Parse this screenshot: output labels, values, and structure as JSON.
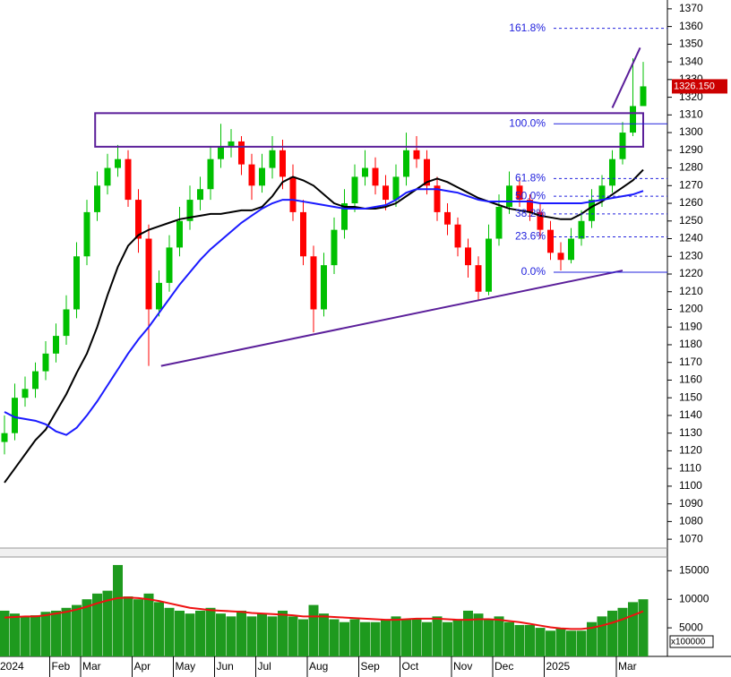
{
  "chart_data": {
    "type": "candlestick",
    "categories": [
      "2024",
      null,
      null,
      null,
      null,
      "Feb",
      null,
      null,
      "Mar",
      null,
      null,
      null,
      null,
      "Apr",
      null,
      null,
      null,
      "May",
      null,
      null,
      null,
      "Jun",
      null,
      null,
      null,
      "Jul",
      null,
      null,
      null,
      null,
      "Aug",
      null,
      null,
      null,
      null,
      "Sep",
      null,
      null,
      null,
      "Oct",
      null,
      null,
      null,
      null,
      "Nov",
      null,
      null,
      null,
      "Dec",
      null,
      null,
      null,
      null,
      "2025",
      null,
      null,
      null,
      null,
      null,
      null,
      "Mar",
      null,
      null
    ],
    "open": [
      1125,
      1130,
      1150,
      1155,
      1165,
      1175,
      1185,
      1200,
      1230,
      1255,
      1270,
      1280,
      1285,
      1262,
      1240,
      1200,
      1215,
      1235,
      1250,
      1262,
      1268,
      1285,
      1292,
      1295,
      1282,
      1270,
      1280,
      1290,
      1275,
      1255,
      1230,
      1200,
      1225,
      1245,
      1260,
      1275,
      1280,
      1270,
      1262,
      1275,
      1290,
      1285,
      1270,
      1255,
      1248,
      1235,
      1225,
      1210,
      1240,
      1258,
      1270,
      1262,
      1255,
      1245,
      1232,
      1228,
      1240,
      1250,
      1262,
      1270,
      1285,
      1300,
      1315
    ],
    "high": [
      1140,
      1158,
      1162,
      1170,
      1182,
      1192,
      1208,
      1238,
      1262,
      1278,
      1288,
      1293,
      1290,
      1268,
      1248,
      1222,
      1242,
      1258,
      1270,
      1275,
      1292,
      1305,
      1302,
      1298,
      1288,
      1288,
      1298,
      1296,
      1282,
      1262,
      1236,
      1232,
      1252,
      1268,
      1282,
      1290,
      1286,
      1276,
      1282,
      1300,
      1298,
      1290,
      1275,
      1260,
      1252,
      1240,
      1230,
      1248,
      1265,
      1278,
      1274,
      1265,
      1260,
      1250,
      1238,
      1246,
      1256,
      1268,
      1276,
      1290,
      1306,
      1342,
      1340
    ],
    "low": [
      1118,
      1126,
      1145,
      1150,
      1160,
      1170,
      1180,
      1195,
      1225,
      1250,
      1265,
      1275,
      1258,
      1232,
      1168,
      1196,
      1210,
      1230,
      1245,
      1256,
      1262,
      1280,
      1286,
      1276,
      1262,
      1266,
      1274,
      1268,
      1250,
      1225,
      1187,
      1196,
      1220,
      1240,
      1255,
      1270,
      1265,
      1256,
      1258,
      1270,
      1280,
      1265,
      1250,
      1242,
      1230,
      1218,
      1205,
      1208,
      1236,
      1254,
      1258,
      1250,
      1240,
      1228,
      1222,
      1226,
      1236,
      1246,
      1258,
      1266,
      1282,
      1298,
      1318
    ],
    "close": [
      1130,
      1150,
      1155,
      1165,
      1175,
      1185,
      1200,
      1230,
      1255,
      1270,
      1280,
      1285,
      1262,
      1240,
      1200,
      1215,
      1235,
      1250,
      1262,
      1268,
      1285,
      1292,
      1295,
      1282,
      1270,
      1280,
      1290,
      1275,
      1255,
      1230,
      1200,
      1225,
      1245,
      1260,
      1275,
      1280,
      1270,
      1262,
      1275,
      1290,
      1285,
      1270,
      1255,
      1248,
      1235,
      1225,
      1210,
      1240,
      1258,
      1270,
      1262,
      1255,
      1245,
      1232,
      1228,
      1240,
      1250,
      1262,
      1270,
      1285,
      1300,
      1315,
      1326.15
    ],
    "up_color": "#00c000",
    "down_color": "#ff0000",
    "moving_averages": [
      {
        "color": "#000000",
        "values": [
          1102,
          1110,
          1118,
          1126,
          1132,
          1142,
          1152,
          1164,
          1175,
          1190,
          1208,
          1224,
          1236,
          1242,
          1245,
          1247,
          1249,
          1251,
          1252,
          1253,
          1254,
          1254,
          1255,
          1256,
          1256,
          1258,
          1264,
          1272,
          1275,
          1273,
          1270,
          1265,
          1260,
          1258,
          1258,
          1257,
          1257,
          1258,
          1260,
          1264,
          1268,
          1272,
          1274,
          1272,
          1269,
          1266,
          1263,
          1261,
          1259,
          1257,
          1256,
          1255,
          1253,
          1252,
          1251,
          1251,
          1254,
          1258,
          1261,
          1265,
          1269,
          1273,
          1279
        ]
      },
      {
        "color": "#1a1aff",
        "values": [
          1142,
          1139,
          1138,
          1137,
          1135,
          1131,
          1129,
          1133,
          1140,
          1148,
          1157,
          1166,
          1175,
          1183,
          1190,
          1198,
          1206,
          1214,
          1221,
          1228,
          1234,
          1239,
          1244,
          1249,
          1253,
          1257,
          1260,
          1262,
          1262,
          1261,
          1260,
          1259,
          1258,
          1257,
          1257,
          1257,
          1258,
          1259,
          1262,
          1266,
          1268,
          1268,
          1268,
          1267,
          1266,
          1264,
          1262,
          1261,
          1261,
          1261,
          1261,
          1261,
          1260,
          1260,
          1260,
          1260,
          1260,
          1261,
          1262,
          1263,
          1264,
          1265,
          1267
        ]
      }
    ],
    "ylim": [
      1065,
      1375
    ],
    "yticks": [
      1070,
      1080,
      1090,
      1100,
      1110,
      1120,
      1130,
      1140,
      1150,
      1160,
      1170,
      1180,
      1190,
      1200,
      1210,
      1220,
      1230,
      1240,
      1250,
      1260,
      1270,
      1280,
      1290,
      1300,
      1310,
      1320,
      1330,
      1340,
      1350,
      1360,
      1370
    ],
    "last_price": 1326.15,
    "last_price_label": "1326.150",
    "fib_levels": [
      {
        "label": "161.8%",
        "value": 1359,
        "dashed": true
      },
      {
        "label": "100.0%",
        "value": 1305,
        "dashed": false
      },
      {
        "label": "61.8%",
        "value": 1274,
        "dashed": true
      },
      {
        "label": "50.0%",
        "value": 1264,
        "dashed": true
      },
      {
        "label": "38.2%",
        "value": 1254,
        "dashed": true
      },
      {
        "label": "23.6%",
        "value": 1241,
        "dashed": true
      },
      {
        "label": "0.0%",
        "value": 1221,
        "dashed": false
      }
    ],
    "annotation_color": "#5b1f9a",
    "box": {
      "x": [
        8.8,
        62
      ],
      "y": [
        1292,
        1311
      ]
    },
    "trendlines": [
      {
        "x": [
          15.2,
          60
        ],
        "y": [
          1168,
          1222
        ]
      },
      {
        "x": [
          59,
          61.7
        ],
        "y": [
          1314,
          1348
        ]
      }
    ],
    "volume": {
      "values": [
        8000,
        7500,
        7000,
        7200,
        7800,
        8000,
        8500,
        9000,
        10000,
        11000,
        11500,
        16000,
        10500,
        10000,
        11000,
        9500,
        8500,
        8000,
        7500,
        8000,
        8500,
        7500,
        7000,
        8000,
        7000,
        7500,
        7000,
        8000,
        7000,
        6500,
        9000,
        7500,
        6500,
        6000,
        6500,
        6000,
        6000,
        6500,
        7000,
        6500,
        6500,
        6000,
        7000,
        6000,
        6500,
        8000,
        7500,
        6500,
        7000,
        6000,
        5500,
        5500,
        5000,
        4500,
        5000,
        4500,
        4500,
        6000,
        7000,
        8000,
        8500,
        9500,
        10000
      ],
      "color": "#1e9a1e",
      "ma": [
        6800,
        6900,
        7000,
        7000,
        7200,
        7500,
        7800,
        8200,
        8700,
        9300,
        9800,
        10200,
        10300,
        10200,
        10000,
        9700,
        9300,
        8900,
        8500,
        8300,
        8100,
        8000,
        7900,
        7800,
        7600,
        7500,
        7400,
        7300,
        7200,
        7000,
        7000,
        7000,
        6900,
        6800,
        6700,
        6600,
        6500,
        6400,
        6400,
        6500,
        6600,
        6600,
        6600,
        6500,
        6400,
        6400,
        6500,
        6500,
        6400,
        6200,
        6000,
        5700,
        5400,
        5100,
        4900,
        4800,
        4800,
        5000,
        5400,
        5900,
        6500,
        7200,
        7900
      ],
      "ma_color": "#ee1111",
      "ylim": [
        0,
        17400
      ],
      "yticks": [
        5000,
        10000,
        15000
      ],
      "unit_label": "x100000"
    }
  }
}
